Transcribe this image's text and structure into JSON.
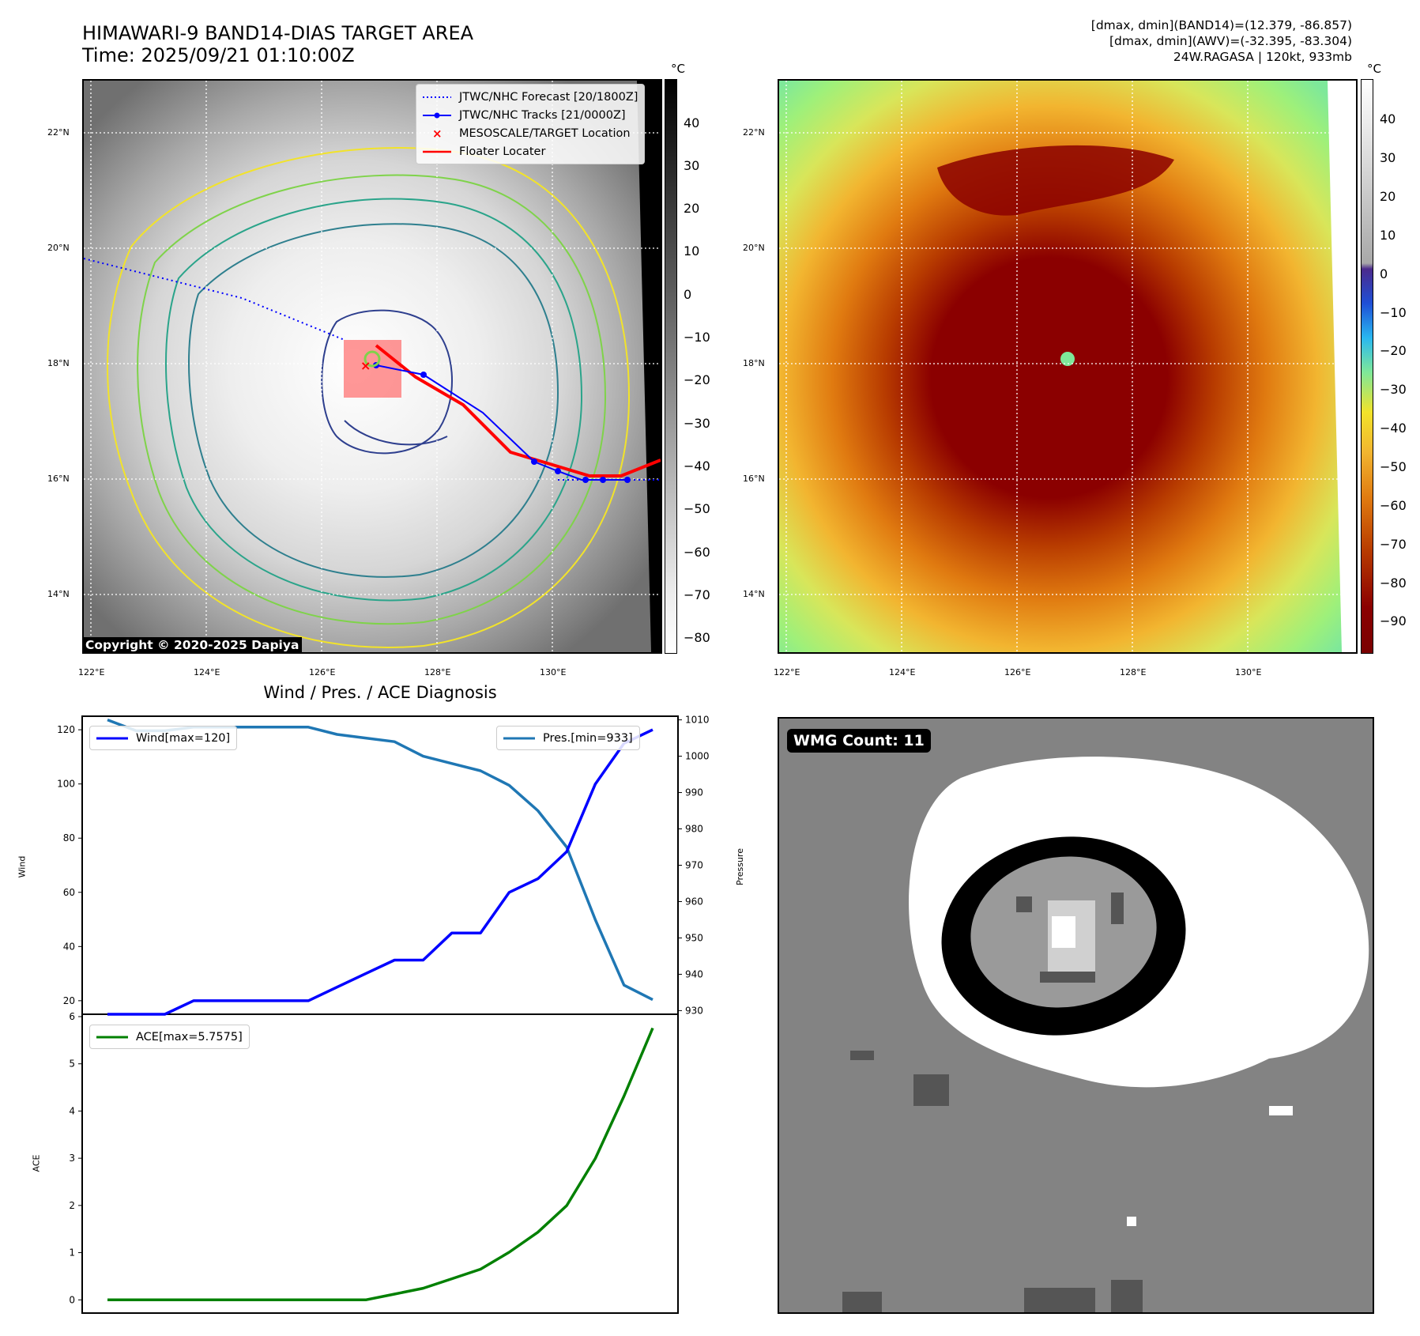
{
  "header": {
    "title_line1": "HIMAWARI-9 BAND14-DIAS TARGET AREA",
    "title_line2": "Time: 2025/09/21 01:10:00Z",
    "info_line1": "[dmax, dmin](BAND14)=(12.379, -86.857)",
    "info_line2": "[dmax, dmin](AWV)=(-32.395, -83.304)",
    "info_line3": "24W.RAGASA | 120kt, 933mb"
  },
  "map_axes": {
    "lat_labels": [
      "22°N",
      "20°N",
      "18°N",
      "16°N",
      "14°N"
    ],
    "lon_labels": [
      "122°E",
      "124°E",
      "126°E",
      "128°E",
      "130°E"
    ]
  },
  "colorbar_left": {
    "unit": "°C",
    "ticks": [
      "40",
      "30",
      "20",
      "10",
      "0",
      "−10",
      "−20",
      "−30",
      "−40",
      "−50",
      "−60",
      "−70",
      "−80"
    ]
  },
  "colorbar_right": {
    "unit": "°C",
    "ticks": [
      "40",
      "30",
      "20",
      "10",
      "0",
      "−10",
      "−20",
      "−30",
      "−40",
      "−50",
      "−60",
      "−70",
      "−80",
      "−90"
    ]
  },
  "legend": {
    "forecast": "JTWC/NHC Forecast [20/1800Z]",
    "tracks": "JTWC/NHC Tracks [21/0000Z]",
    "target": "MESOSCALE/TARGET Location",
    "floater": "Floater Locater"
  },
  "copyright": "Copyright © 2020-2025 Dapiya",
  "wmg_badge": "WMG Count: 11",
  "colors": {
    "wind": "#0000ff",
    "pressure": "#1f77b4",
    "ace": "#008000",
    "forecast": "#0000ff",
    "track": "#0000ff",
    "floater": "#ff0000"
  },
  "chart_data": [
    {
      "type": "line",
      "title": "Wind / Pres. / ACE Diagnosis",
      "ylabel": "Wind",
      "y2label": "Pressure",
      "ylim": [
        15,
        125
      ],
      "y2lim": [
        929,
        1011
      ],
      "yticks": [
        20,
        40,
        60,
        80,
        100,
        120
      ],
      "y2ticks": [
        930,
        940,
        950,
        960,
        970,
        980,
        990,
        1000,
        1010
      ],
      "x": [
        0,
        1,
        2,
        3,
        4,
        5,
        6,
        7,
        8,
        9,
        10,
        11,
        12,
        13,
        14,
        15,
        16,
        17,
        18,
        19
      ],
      "series": [
        {
          "name": "Wind[max=120]",
          "axis": "left",
          "values": [
            15,
            15,
            15,
            20,
            20,
            20,
            20,
            20,
            25,
            30,
            35,
            35,
            45,
            45,
            60,
            65,
            75,
            100,
            115,
            120
          ]
        },
        {
          "name": "Pres.[min=933]",
          "axis": "right",
          "values": [
            1010,
            1007,
            1007,
            1008,
            1008,
            1008,
            1008,
            1008,
            1006,
            1005,
            1004,
            1000,
            998,
            996,
            992,
            985,
            975,
            955,
            937,
            933
          ]
        }
      ]
    },
    {
      "type": "line",
      "ylabel": "ACE",
      "ylim": [
        -0.28,
        6.05
      ],
      "yticks": [
        0,
        1,
        2,
        3,
        4,
        5,
        6
      ],
      "x": [
        0,
        1,
        2,
        3,
        4,
        5,
        6,
        7,
        8,
        9,
        10,
        11,
        12,
        13,
        14,
        15,
        16,
        17,
        18,
        19
      ],
      "series": [
        {
          "name": "ACE[max=5.7575]",
          "values": [
            0,
            0,
            0,
            0,
            0,
            0,
            0,
            0,
            0,
            0,
            0.1225,
            0.245,
            0.4475,
            0.65,
            1.01,
            1.4325,
            1.995,
            2.995,
            4.3175,
            5.7575
          ]
        }
      ]
    }
  ]
}
